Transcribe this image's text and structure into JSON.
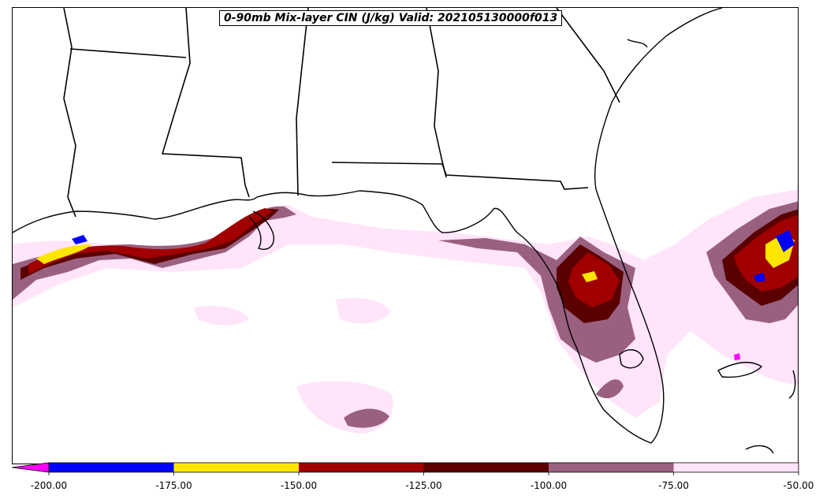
{
  "map": {
    "title": "0-90mb Mix-layer CIN (J/kg) Valid: 202105130000f013",
    "region": "Gulf of Mexico / Southeastern United States",
    "variable": "0-90mb Mix-layer CIN",
    "units": "J/kg",
    "valid_time": "202105130000",
    "forecast_hour": "f013"
  },
  "colorbar": {
    "extend_color": "#ff00ff",
    "bins": [
      {
        "from": -200,
        "to": -175,
        "color": "#0000ff"
      },
      {
        "from": -175,
        "to": -150,
        "color": "#ffe600"
      },
      {
        "from": -150,
        "to": -125,
        "color": "#a00000"
      },
      {
        "from": -125,
        "to": -100,
        "color": "#5a0000"
      },
      {
        "from": -100,
        "to": -75,
        "color": "#9a6080"
      },
      {
        "from": -75,
        "to": -50,
        "color": "#ffe4fa"
      }
    ],
    "tick_labels": [
      "-200.00",
      "-175.00",
      "-150.00",
      "-125.00",
      "-100.00",
      "-75.00",
      "-50.00"
    ]
  }
}
